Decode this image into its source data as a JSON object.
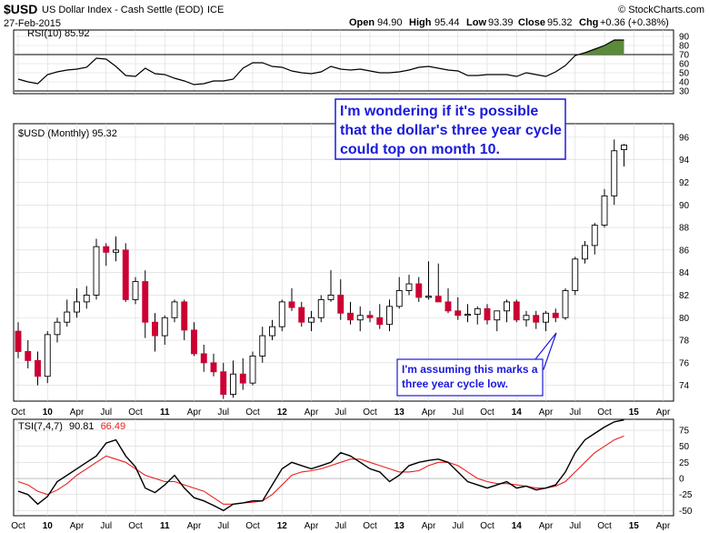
{
  "header": {
    "symbol": "$USD",
    "name": "US Dollar Index - Cash Settle (EOD)",
    "exchange": "ICE",
    "date": "27-Feb-2015",
    "copyright": "© StockCharts.com",
    "quote": {
      "open_label": "Open",
      "open": "94.90",
      "high_label": "High",
      "high": "95.44",
      "low_label": "Low",
      "low": "93.39",
      "close_label": "Close",
      "close": "95.32",
      "chg_label": "Chg",
      "chg": "+0.36 (+0.38%)"
    }
  },
  "annotations": {
    "big_box": [
      "I'm wondering if it's possible",
      "that the dollar's three year cycle",
      "could top on month 10."
    ],
    "small_box": [
      "I'm assuming this marks a",
      "three year cycle low."
    ]
  },
  "colors": {
    "up": "#ffffff",
    "down": "#cc0033",
    "outline": "#000000",
    "rsi_line": "#000000",
    "rsi_fill": "#5a8a3a",
    "tsi_line": "#000000",
    "tsi_signal": "#e8201f",
    "annotation_text": "#1a1adb",
    "annotation_border": "#1a1adb",
    "grid": "#d8d8d8"
  },
  "x_axis": {
    "labels": [
      "Oct",
      "10",
      "Apr",
      "Jul",
      "Oct",
      "11",
      "Apr",
      "Jul",
      "Oct",
      "12",
      "Apr",
      "Jul",
      "Oct",
      "13",
      "Apr",
      "Jul",
      "Oct",
      "14",
      "Apr",
      "Jul",
      "Oct",
      "15",
      "Apr"
    ],
    "label_months": [
      0,
      3,
      6,
      9,
      12,
      15,
      18,
      21,
      24,
      27,
      30,
      33,
      36,
      39,
      42,
      45,
      48,
      51,
      54,
      57,
      60,
      63,
      66
    ],
    "bold_labels": [
      "10",
      "11",
      "12",
      "13",
      "14",
      "15"
    ]
  },
  "chart_data": [
    {
      "type": "line",
      "name": "RSI(10)",
      "legend": "RSI(10) 85.92",
      "y_ticks": [
        30,
        50,
        70,
        90
      ],
      "y_tick_labels": [
        "30",
        "40",
        "50",
        "60",
        "70",
        "80",
        "90"
      ],
      "y_minor_ticks": [
        40,
        60,
        80
      ],
      "ylim": [
        27,
        97
      ],
      "overbought": 70,
      "oversold": 30,
      "values": [
        43,
        40,
        38,
        48,
        51,
        53,
        54,
        56,
        66,
        65,
        57,
        47,
        46,
        55,
        49,
        48,
        44,
        41,
        37,
        38,
        41,
        41,
        43,
        55,
        61,
        61,
        57,
        56,
        52,
        50,
        49,
        51,
        57,
        54,
        53,
        54,
        52,
        50,
        50,
        51,
        53,
        56,
        57,
        55,
        53,
        52,
        47,
        47,
        48,
        48,
        48,
        46,
        50,
        48,
        46,
        51,
        58,
        69,
        72,
        76,
        80,
        86,
        86
      ]
    },
    {
      "type": "candlestick",
      "name": "$USD (Monthly)",
      "legend": "$USD (Monthly) 95.32",
      "y_ticks": [
        74,
        76,
        78,
        80,
        82,
        84,
        86,
        88,
        90,
        92,
        94,
        96
      ],
      "ylim": [
        72.6,
        97.2
      ],
      "ohlc": [
        [
          78.8,
          79.6,
          76.4,
          77.0
        ],
        [
          77.0,
          78.0,
          75.5,
          76.2
        ],
        [
          76.2,
          77.0,
          74.0,
          74.8
        ],
        [
          74.8,
          78.8,
          74.2,
          78.5
        ],
        [
          78.5,
          80.0,
          77.8,
          79.6
        ],
        [
          79.6,
          81.6,
          79.2,
          80.5
        ],
        [
          80.5,
          82.6,
          80.0,
          81.4
        ],
        [
          81.4,
          82.8,
          80.8,
          82.0
        ],
        [
          82.0,
          87.0,
          81.6,
          86.3
        ],
        [
          86.3,
          86.6,
          84.6,
          85.8
        ],
        [
          85.8,
          87.2,
          85.0,
          86.0
        ],
        [
          86.0,
          86.6,
          81.4,
          81.6
        ],
        [
          81.6,
          83.6,
          81.2,
          83.2
        ],
        [
          83.2,
          84.2,
          78.2,
          79.6
        ],
        [
          79.6,
          80.4,
          77.0,
          78.4
        ],
        [
          78.4,
          80.2,
          77.6,
          80.0
        ],
        [
          80.0,
          81.6,
          79.6,
          81.4
        ],
        [
          81.4,
          81.6,
          78.0,
          78.9
        ],
        [
          78.9,
          79.6,
          76.6,
          76.8
        ],
        [
          76.8,
          77.6,
          75.2,
          76.0
        ],
        [
          76.0,
          76.8,
          74.8,
          75.2
        ],
        [
          75.2,
          76.0,
          72.8,
          73.2
        ],
        [
          73.2,
          76.2,
          72.9,
          75.0
        ],
        [
          75.0,
          76.4,
          73.6,
          74.2
        ],
        [
          74.2,
          77.0,
          74.0,
          76.6
        ],
        [
          76.6,
          79.2,
          76.0,
          78.4
        ],
        [
          78.4,
          79.8,
          78.0,
          79.2
        ],
        [
          79.2,
          81.6,
          78.8,
          81.4
        ],
        [
          81.4,
          82.6,
          80.6,
          80.9
        ],
        [
          80.9,
          81.4,
          79.2,
          79.6
        ],
        [
          79.6,
          80.6,
          78.8,
          80.0
        ],
        [
          80.0,
          82.0,
          79.6,
          81.6
        ],
        [
          81.6,
          84.2,
          81.4,
          82.0
        ],
        [
          82.0,
          83.4,
          79.8,
          80.4
        ],
        [
          80.4,
          81.4,
          79.4,
          79.8
        ],
        [
          79.8,
          81.0,
          78.8,
          80.2
        ],
        [
          80.2,
          80.6,
          79.6,
          80.0
        ],
        [
          80.0,
          81.2,
          79.0,
          79.4
        ],
        [
          79.4,
          81.6,
          78.8,
          81.0
        ],
        [
          81.0,
          83.6,
          80.8,
          82.4
        ],
        [
          82.4,
          83.8,
          82.0,
          83.0
        ],
        [
          83.0,
          83.6,
          81.4,
          81.8
        ],
        [
          81.8,
          85.0,
          81.6,
          81.9
        ],
        [
          81.9,
          84.8,
          81.4,
          81.4
        ],
        [
          81.4,
          82.6,
          80.4,
          80.6
        ],
        [
          80.6,
          81.8,
          79.8,
          80.2
        ],
        [
          80.2,
          81.2,
          79.6,
          80.3
        ],
        [
          80.3,
          81.0,
          79.4,
          80.8
        ],
        [
          80.8,
          81.2,
          79.4,
          79.8
        ],
        [
          79.8,
          80.6,
          78.8,
          80.6
        ],
        [
          80.6,
          81.6,
          79.6,
          81.4
        ],
        [
          81.4,
          81.6,
          79.6,
          79.8
        ],
        [
          79.8,
          80.6,
          79.2,
          80.2
        ],
        [
          80.2,
          80.6,
          79.0,
          79.6
        ],
        [
          79.6,
          80.6,
          78.8,
          80.4
        ],
        [
          80.4,
          80.8,
          79.6,
          80.0
        ],
        [
          80.0,
          82.6,
          79.8,
          82.4
        ],
        [
          82.4,
          85.4,
          82.0,
          85.2
        ],
        [
          85.2,
          86.8,
          84.8,
          86.4
        ],
        [
          86.4,
          88.4,
          85.6,
          88.2
        ],
        [
          88.2,
          91.4,
          88.0,
          90.8
        ],
        [
          90.8,
          95.8,
          90.0,
          94.8
        ],
        [
          94.9,
          95.4,
          93.4,
          95.3
        ]
      ]
    },
    {
      "type": "line",
      "name": "TSI(7,4,7)",
      "legend_name": "TSI(7,4,7)",
      "legend_value_1": "90.81",
      "legend_value_2": "66.49",
      "y_ticks": [
        -50,
        -25,
        0,
        25,
        50,
        75
      ],
      "ylim": [
        -58,
        92
      ],
      "tsi": [
        -20,
        -25,
        -40,
        -28,
        -5,
        5,
        15,
        25,
        35,
        55,
        60,
        35,
        18,
        -15,
        -22,
        -10,
        5,
        -15,
        -30,
        -35,
        -42,
        -50,
        -40,
        -38,
        -35,
        -35,
        -10,
        15,
        25,
        20,
        15,
        20,
        25,
        40,
        35,
        25,
        15,
        10,
        -5,
        5,
        20,
        25,
        28,
        30,
        25,
        10,
        -5,
        -10,
        -15,
        -10,
        -5,
        -15,
        -12,
        -18,
        -15,
        -10,
        10,
        40,
        60,
        70,
        80,
        88,
        91
      ],
      "signal": [
        -5,
        -10,
        -20,
        -25,
        -18,
        -8,
        5,
        15,
        25,
        35,
        30,
        25,
        15,
        5,
        0,
        -5,
        -5,
        -10,
        -15,
        -20,
        -30,
        -40,
        -40,
        -38,
        -37,
        -35,
        -25,
        -10,
        5,
        10,
        12,
        15,
        20,
        25,
        30,
        30,
        25,
        20,
        15,
        10,
        10,
        12,
        20,
        25,
        25,
        20,
        10,
        0,
        -5,
        -8,
        -8,
        -10,
        -12,
        -15,
        -15,
        -12,
        -5,
        10,
        25,
        40,
        50,
        60,
        66
      ]
    }
  ]
}
